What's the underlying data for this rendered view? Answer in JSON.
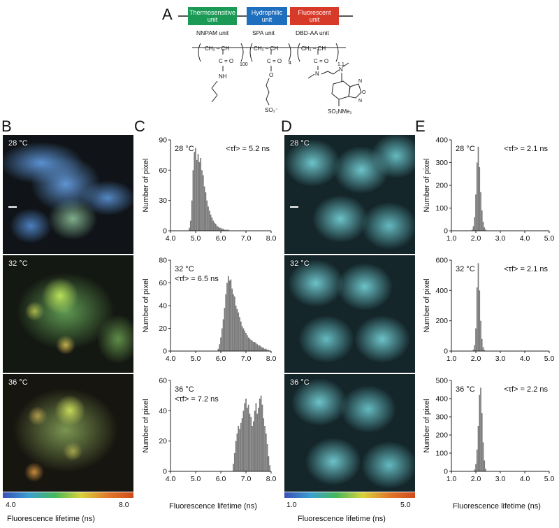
{
  "panel_letters": {
    "a": "A",
    "b": "B",
    "c": "C",
    "d": "D",
    "e": "E"
  },
  "structure": {
    "units": [
      {
        "label_line1": "Thermosensitive",
        "label_line2": "unit",
        "color": "#1a9a55"
      },
      {
        "label_line1": "Hydrophilic",
        "label_line2": "unit",
        "color": "#1f6fbf"
      },
      {
        "label_line1": "Fluorescent",
        "label_line2": "unit",
        "color": "#d83a2a"
      }
    ],
    "monomer_labels": [
      "NNPAM unit",
      "SPA unit",
      "DBD-AA unit"
    ],
    "subscripts": [
      "100",
      "4",
      "1.1"
    ],
    "groups": {
      "ch2_ch": "CH₂ – CH",
      "co": "C = O",
      "nh": "NH",
      "o": "O",
      "so3": "SO₃⁻",
      "so2nme2": "SO₂NMe₂"
    }
  },
  "micro_B": {
    "temps": [
      "28 °C",
      "32 °C",
      "36 °C"
    ],
    "colorbar": {
      "min": "4.0",
      "max": "8.0",
      "label": "Fluorescence lifetime (ns)"
    }
  },
  "micro_D": {
    "temps": [
      "28 °C",
      "32 °C",
      "36 °C"
    ],
    "colorbar": {
      "min": "1.0",
      "max": "5.0",
      "label": "Fluorescence lifetime (ns)"
    }
  },
  "chart_data": [
    {
      "type": "bar",
      "panel": "C",
      "temp": "28 °C",
      "annotation": "<τf> = 5.2 ns",
      "ylabel": "Number of pixel",
      "xlim": [
        4.0,
        8.0
      ],
      "ylim": [
        0,
        90
      ],
      "xticks": [
        "4.0",
        "5.0",
        "6.0",
        "7.0",
        "8.0"
      ],
      "yticks": [
        "0",
        "30",
        "60",
        "90"
      ],
      "x": [
        4.75,
        4.8,
        4.85,
        4.9,
        4.95,
        5.0,
        5.05,
        5.1,
        5.15,
        5.2,
        5.25,
        5.3,
        5.35,
        5.4,
        5.45,
        5.5,
        5.55,
        5.6,
        5.65,
        5.7,
        5.75,
        5.8,
        5.85,
        5.9,
        5.95,
        6.0,
        6.05,
        6.1,
        6.15,
        6.2,
        6.25,
        6.3
      ],
      "values": [
        3,
        10,
        30,
        60,
        78,
        82,
        70,
        76,
        68,
        72,
        60,
        55,
        44,
        38,
        30,
        24,
        20,
        16,
        13,
        10,
        8,
        7,
        5,
        4,
        3,
        3,
        2,
        2,
        1,
        1,
        1,
        1
      ]
    },
    {
      "type": "bar",
      "panel": "C",
      "temp": "32 °C",
      "annotation": "<τf> = 6.5 ns",
      "ylabel": "Number of pixel",
      "xlim": [
        4.0,
        8.0
      ],
      "ylim": [
        0,
        80
      ],
      "xticks": [
        "4.0",
        "5.0",
        "6.0",
        "7.0",
        "8.0"
      ],
      "yticks": [
        "0",
        "20",
        "40",
        "60",
        "80"
      ],
      "x": [
        5.9,
        5.95,
        6.0,
        6.05,
        6.1,
        6.15,
        6.2,
        6.25,
        6.3,
        6.35,
        6.4,
        6.45,
        6.5,
        6.55,
        6.6,
        6.65,
        6.7,
        6.75,
        6.8,
        6.85,
        6.9,
        6.95,
        7.0,
        7.05,
        7.1,
        7.15,
        7.2,
        7.25,
        7.3,
        7.35,
        7.4,
        7.45,
        7.5,
        7.55,
        7.6,
        7.65,
        7.7,
        7.75,
        7.8,
        7.85,
        7.9
      ],
      "values": [
        2,
        6,
        12,
        20,
        28,
        38,
        50,
        60,
        66,
        62,
        63,
        55,
        50,
        48,
        40,
        37,
        34,
        30,
        26,
        22,
        20,
        18,
        16,
        14,
        12,
        11,
        10,
        9,
        8,
        8,
        7,
        6,
        5,
        5,
        4,
        3,
        3,
        2,
        2,
        1,
        1
      ]
    },
    {
      "type": "bar",
      "panel": "C",
      "temp": "36 °C",
      "annotation": "<τf> = 7.2 ns",
      "ylabel": "Number of pixel",
      "xlim": [
        4.0,
        8.0
      ],
      "ylim": [
        0,
        60
      ],
      "xticks": [
        "4.0",
        "5.0",
        "6.0",
        "7.0",
        "8.0"
      ],
      "yticks": [
        "0",
        "20",
        "40",
        "60"
      ],
      "x": [
        6.5,
        6.55,
        6.6,
        6.65,
        6.7,
        6.75,
        6.8,
        6.85,
        6.9,
        6.95,
        7.0,
        7.05,
        7.1,
        7.15,
        7.2,
        7.25,
        7.3,
        7.35,
        7.4,
        7.45,
        7.5,
        7.55,
        7.6,
        7.65,
        7.7,
        7.75,
        7.8,
        7.85,
        7.9,
        7.95
      ],
      "values": [
        5,
        12,
        20,
        25,
        30,
        28,
        32,
        35,
        40,
        45,
        48,
        42,
        44,
        38,
        36,
        30,
        33,
        40,
        45,
        38,
        42,
        48,
        50,
        44,
        35,
        30,
        25,
        18,
        10,
        4
      ]
    },
    {
      "type": "bar",
      "panel": "E",
      "temp": "28 °C",
      "annotation": "<τf> = 2.1 ns",
      "ylabel": "Number of pixel",
      "xlim": [
        1.0,
        5.0
      ],
      "ylim": [
        0,
        400
      ],
      "xticks": [
        "1.0",
        "2.0",
        "3.0",
        "4.0",
        "5.0"
      ],
      "yticks": [
        "0",
        "100",
        "200",
        "300",
        "400"
      ],
      "x": [
        1.85,
        1.9,
        1.95,
        2.0,
        2.05,
        2.1,
        2.15,
        2.2,
        2.25,
        2.3,
        2.35,
        2.4
      ],
      "values": [
        5,
        20,
        60,
        160,
        300,
        370,
        280,
        170,
        90,
        40,
        15,
        5
      ]
    },
    {
      "type": "bar",
      "panel": "E",
      "temp": "32 °C",
      "annotation": "<τf> = 2.1 ns",
      "ylabel": "Number of pixel",
      "xlim": [
        1.0,
        5.0
      ],
      "ylim": [
        0,
        600
      ],
      "xticks": [
        "1.0",
        "2.0",
        "3.0",
        "4.0",
        "5.0"
      ],
      "yticks": [
        "0",
        "200",
        "400",
        "600"
      ],
      "x": [
        1.9,
        1.95,
        2.0,
        2.05,
        2.1,
        2.15,
        2.2,
        2.25,
        2.3,
        2.35
      ],
      "values": [
        10,
        40,
        150,
        420,
        580,
        400,
        200,
        80,
        25,
        8
      ]
    },
    {
      "type": "bar",
      "panel": "E",
      "temp": "36 °C",
      "annotation": "<τf> = 2.2 ns",
      "ylabel": "Number of pixel",
      "xlim": [
        1.0,
        5.0
      ],
      "ylim": [
        0,
        500
      ],
      "xticks": [
        "1.0",
        "2.0",
        "3.0",
        "4.0",
        "5.0"
      ],
      "yticks": [
        "0",
        "100",
        "200",
        "300",
        "400",
        "500"
      ],
      "x": [
        1.95,
        2.0,
        2.05,
        2.1,
        2.15,
        2.2,
        2.25,
        2.3,
        2.35,
        2.4
      ],
      "values": [
        10,
        40,
        120,
        250,
        420,
        460,
        320,
        160,
        60,
        15
      ]
    }
  ],
  "xlabel_C": "Fluorescence lifetime (ns)",
  "xlabel_E": "Fluorescence lifetime (ns)"
}
